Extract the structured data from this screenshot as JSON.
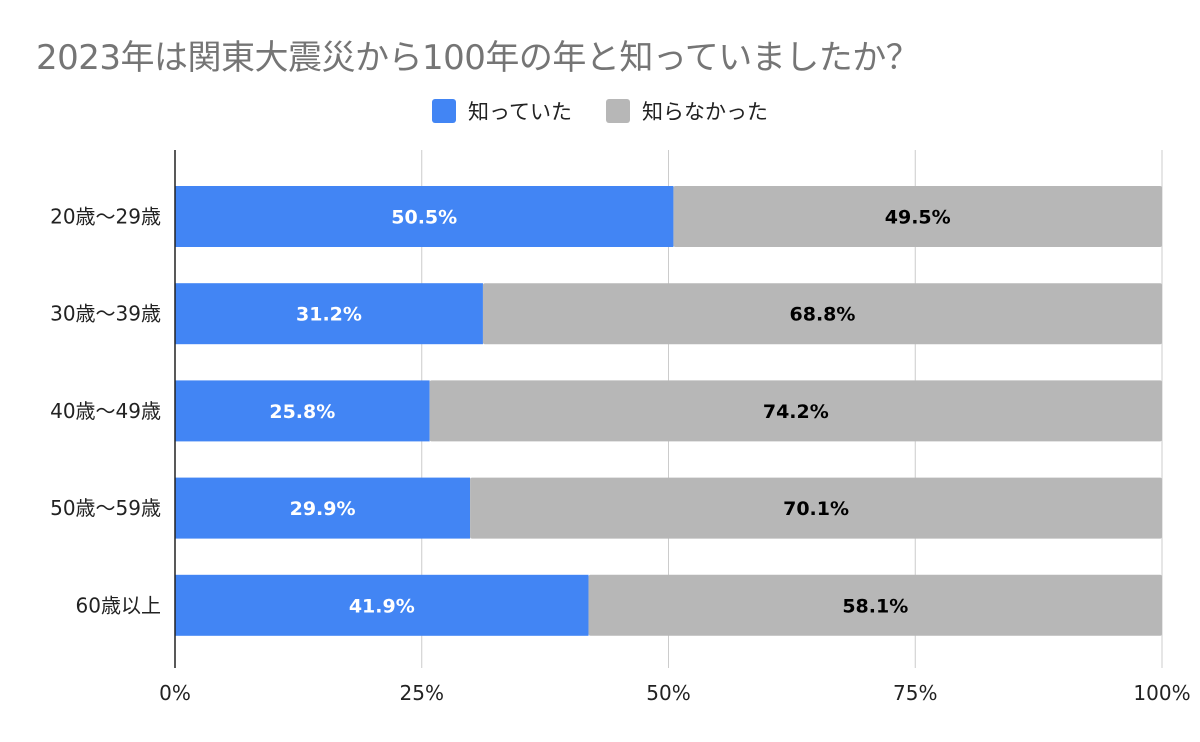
{
  "chart_data": {
    "type": "bar",
    "orientation": "horizontal",
    "stacked": true,
    "title": "2023年は関東大震災から100年の年と知っていましたか？",
    "xlabel": "",
    "ylabel": "",
    "xlim": [
      0,
      100
    ],
    "x_ticks": [
      "0%",
      "25%",
      "50%",
      "75%",
      "100%"
    ],
    "x_tick_values": [
      0,
      25,
      50,
      75,
      100
    ],
    "grid": true,
    "legend_position": "top-center",
    "categories": [
      "20歳〜29歳",
      "30歳〜39歳",
      "40歳〜49歳",
      "50歳〜59歳",
      "60歳以上"
    ],
    "series": [
      {
        "name": "知っていた",
        "color": "#4285f4",
        "label_color": "#ffffff",
        "values": [
          50.5,
          31.2,
          25.8,
          29.9,
          41.9
        ],
        "labels": [
          "50.5%",
          "31.2%",
          "25.8%",
          "29.9%",
          "41.9%"
        ]
      },
      {
        "name": "知らなかった",
        "color": "#b7b7b7",
        "label_color": "#000000",
        "values": [
          49.5,
          68.8,
          74.2,
          70.1,
          58.1
        ],
        "labels": [
          "49.5%",
          "68.8%",
          "74.2%",
          "70.1%",
          "58.1%"
        ]
      }
    ]
  }
}
